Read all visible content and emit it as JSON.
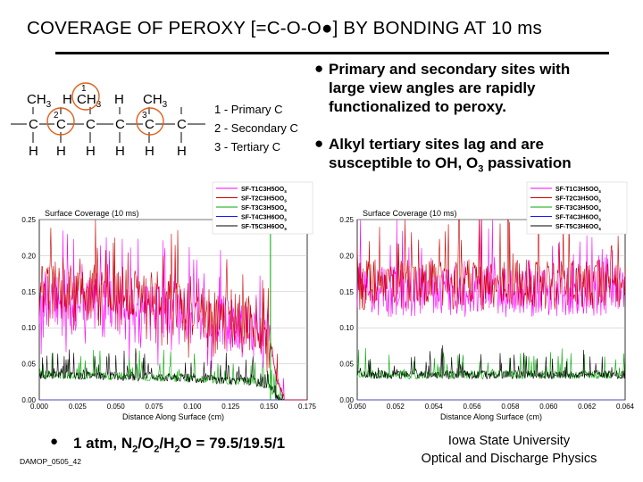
{
  "title": "COVERAGE OF PEROXY [=C-O-O●] BY BONDING AT 10 ms",
  "bullets": [
    {
      "line1": "Primary and secondary sites with",
      "line2": "large view angles are rapidly",
      "line3": "functionalized to peroxy."
    },
    {
      "line1": "Alkyl tertiary sites lag and are",
      "line2a": "susceptible to OH, O",
      "sub": "3",
      "line2b": " passivation"
    }
  ],
  "molecule": {
    "atoms_top": [
      "CH",
      "3",
      "H",
      "CH",
      "3",
      "H",
      "CH",
      "3"
    ],
    "site_numbers": [
      "1",
      "2",
      "3"
    ],
    "legend": [
      "1 - Primary C",
      "2 - Secondary C",
      "3 - Tertiary C"
    ]
  },
  "footer": {
    "bullet": "●",
    "conditions_prefix": "1 atm, N",
    "conditions_parts": [
      "2",
      "/O",
      "2",
      "/H",
      "2",
      "O = 79.5/19.5/1"
    ],
    "code": "DAMOP_0505_42",
    "university": "Iowa State University",
    "group": "Optical and Discharge Physics"
  },
  "colors": {
    "T1": "#ff00ff",
    "T2": "#cc0000",
    "T3": "#00aa00",
    "T4": "#1a1aff",
    "T5": "#000000"
  },
  "chart_data": [
    {
      "type": "line",
      "title": "Surface Coverage (10 ms)",
      "xlabel": "Distance Along Surface (cm)",
      "ylabel": "",
      "xlim": [
        0,
        0.175
      ],
      "ylim": [
        0,
        0.25
      ],
      "xticks": [
        "0.000",
        "0.025",
        "0.050",
        "0.075",
        "0.100",
        "0.125",
        "0.150",
        "0.175"
      ],
      "yticks": [
        "0.00",
        "0.05",
        "0.10",
        "0.15",
        "0.20",
        "0.25"
      ],
      "legend": [
        "SF-T1C3H5OO",
        "SF-T2C3H5OO",
        "SF-T3C3H5OO",
        "SF-T4C3H6OO",
        "SF-T5C3H6OO"
      ],
      "legend_sub": "s",
      "series_profile": [
        {
          "name": "SF-T1C3H5OO",
          "x": [
            0,
            0.05,
            0.1,
            0.14,
            0.15,
            0.155,
            0.16
          ],
          "y": [
            0.14,
            0.135,
            0.12,
            0.1,
            0.09,
            0.03,
            0.0
          ]
        },
        {
          "name": "SF-T2C3H5OO",
          "x": [
            0,
            0.05,
            0.1,
            0.14,
            0.15,
            0.155,
            0.16
          ],
          "y": [
            0.16,
            0.155,
            0.135,
            0.11,
            0.095,
            0.03,
            0.0
          ]
        },
        {
          "name": "SF-T3C3H5OO",
          "x": [
            0,
            0.05,
            0.1,
            0.14,
            0.15,
            0.155,
            0.16
          ],
          "y": [
            0.035,
            0.033,
            0.03,
            0.025,
            0.02,
            0.005,
            0.0
          ]
        },
        {
          "name": "SF-T4C3H6OO",
          "x": [
            0,
            0.175
          ],
          "y": [
            0.0,
            0.0
          ]
        },
        {
          "name": "SF-T5C3H6OO",
          "x": [
            0,
            0.05,
            0.1,
            0.14,
            0.15,
            0.155,
            0.16
          ],
          "y": [
            0.035,
            0.033,
            0.03,
            0.025,
            0.02,
            0.005,
            0.0
          ]
        }
      ]
    },
    {
      "type": "line",
      "title": "Surface Coverage (10 ms)",
      "xlabel": "Distance Along Surface (cm)",
      "ylabel": "",
      "xlim": [
        0.05,
        0.065
      ],
      "ylim": [
        0,
        0.25
      ],
      "xticks": [
        "0.050",
        "0.052",
        "0.054",
        "0.056",
        "0.058",
        "0.060",
        "0.062",
        "0.064"
      ],
      "yticks": [
        "0.00",
        "0.05",
        "0.10",
        "0.15",
        "0.20",
        "0.25"
      ],
      "legend": [
        "SF-T1C3H5OO",
        "SF-T2C3H5OO",
        "SF-T3C3H5OO",
        "SF-T4C3H6OO",
        "SF-T5C3H6OO"
      ],
      "legend_sub": "s",
      "series_profile": [
        {
          "name": "SF-T1C3H5OO",
          "x": [
            0.05,
            0.065
          ],
          "y": [
            0.15,
            0.15
          ]
        },
        {
          "name": "SF-T2C3H5OO",
          "x": [
            0.05,
            0.065
          ],
          "y": [
            0.16,
            0.16
          ]
        },
        {
          "name": "SF-T3C3H5OO",
          "x": [
            0.05,
            0.065
          ],
          "y": [
            0.035,
            0.035
          ]
        },
        {
          "name": "SF-T4C3H6OO",
          "x": [
            0.05,
            0.065
          ],
          "y": [
            0.0,
            0.0
          ]
        },
        {
          "name": "SF-T5C3H6OO",
          "x": [
            0.05,
            0.065
          ],
          "y": [
            0.035,
            0.035
          ]
        }
      ]
    }
  ]
}
